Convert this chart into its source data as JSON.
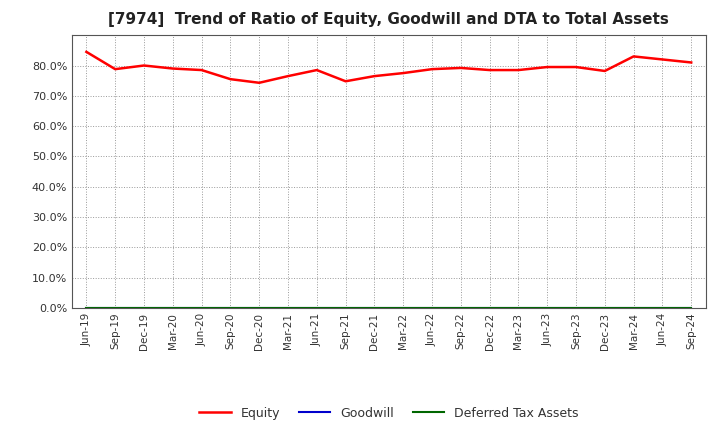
{
  "title": "[7974]  Trend of Ratio of Equity, Goodwill and DTA to Total Assets",
  "x_labels": [
    "Jun-19",
    "Sep-19",
    "Dec-19",
    "Mar-20",
    "Jun-20",
    "Sep-20",
    "Dec-20",
    "Mar-21",
    "Jun-21",
    "Sep-21",
    "Dec-21",
    "Mar-22",
    "Jun-22",
    "Sep-22",
    "Dec-22",
    "Mar-23",
    "Jun-23",
    "Sep-23",
    "Dec-23",
    "Mar-24",
    "Jun-24",
    "Sep-24"
  ],
  "equity": [
    84.5,
    78.8,
    80.0,
    79.0,
    78.5,
    75.5,
    74.3,
    76.5,
    78.5,
    74.8,
    76.5,
    77.5,
    78.8,
    79.2,
    78.5,
    78.5,
    79.5,
    79.5,
    78.2,
    83.0,
    82.0,
    81.0
  ],
  "goodwill": [
    0.0,
    0.0,
    0.0,
    0.0,
    0.0,
    0.0,
    0.0,
    0.0,
    0.0,
    0.0,
    0.0,
    0.0,
    0.0,
    0.0,
    0.0,
    0.0,
    0.0,
    0.0,
    0.0,
    0.0,
    0.0,
    0.0
  ],
  "dta": [
    0.0,
    0.0,
    0.0,
    0.0,
    0.0,
    0.0,
    0.0,
    0.0,
    0.0,
    0.0,
    0.0,
    0.0,
    0.0,
    0.0,
    0.0,
    0.0,
    0.0,
    0.0,
    0.0,
    0.0,
    0.0,
    0.0
  ],
  "equity_color": "#FF0000",
  "goodwill_color": "#0000CC",
  "dta_color": "#006600",
  "ylim": [
    0,
    90
  ],
  "yticks": [
    0,
    10,
    20,
    30,
    40,
    50,
    60,
    70,
    80
  ],
  "background_color": "#FFFFFF",
  "plot_bg_color": "#FFFFFF",
  "grid_color": "#999999",
  "title_fontsize": 11,
  "legend_labels": [
    "Equity",
    "Goodwill",
    "Deferred Tax Assets"
  ]
}
